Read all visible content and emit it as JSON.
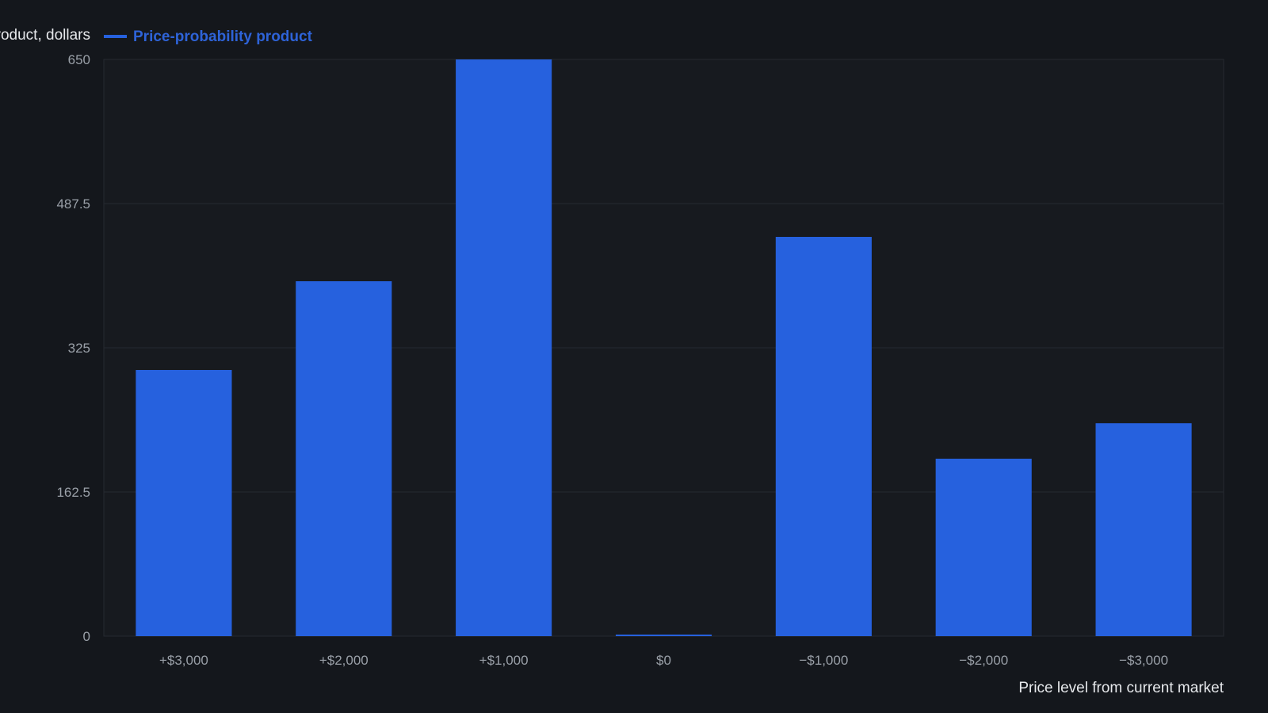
{
  "chart_data": {
    "type": "bar",
    "ylabel": "Price-probability product, dollars",
    "xlabel": "Price level from current market",
    "categories": [
      "+$3,000",
      "+$2,000",
      "+$1,000",
      "$0",
      "−$1,000",
      "−$2,000",
      "−$3,000"
    ],
    "series": [
      {
        "name": "Price-probability product",
        "values": [
          300,
          400,
          650,
          0,
          450,
          200,
          240
        ]
      }
    ],
    "ylim": [
      0,
      650
    ],
    "yticks": [
      "0",
      "162.5",
      "325",
      "487.5",
      "650"
    ],
    "grid": true,
    "legend_position": "top-left",
    "colors": {
      "background": "#14171c",
      "plot_background": "#171a1f",
      "bar": "#2661de",
      "legend_text": "#2e63d8",
      "grid": "#262a31"
    }
  }
}
